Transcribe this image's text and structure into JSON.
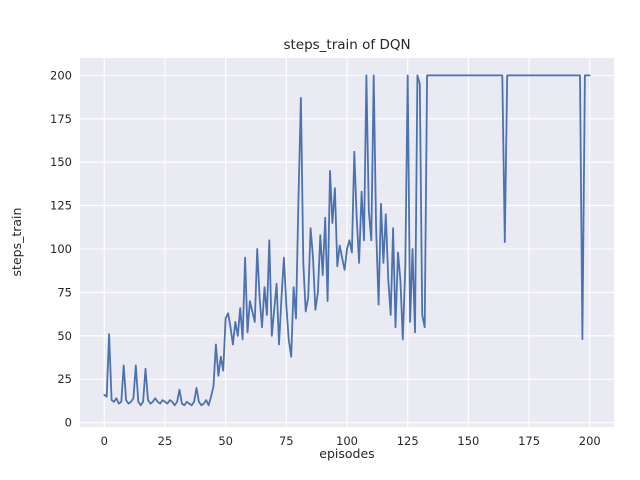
{
  "chart_data": {
    "type": "line",
    "title": "steps_train of DQN",
    "xlabel": "episodes",
    "ylabel": "steps_train",
    "xlim": [
      -10,
      210
    ],
    "ylim": [
      -2.5,
      210
    ],
    "xticks": [
      0,
      25,
      50,
      75,
      100,
      125,
      150,
      175,
      200
    ],
    "yticks": [
      0,
      25,
      50,
      75,
      100,
      125,
      150,
      175,
      200
    ],
    "grid": true,
    "legend": "none",
    "plot_bg": "#eaeaf2",
    "grid_color": "#ffffff",
    "line_color": "#4c72b0",
    "series": [
      {
        "name": "steps_train",
        "x_is_index": true,
        "y": [
          16,
          15,
          51,
          13,
          12,
          14,
          11,
          12,
          33,
          13,
          11,
          12,
          14,
          33,
          12,
          10,
          12,
          31,
          13,
          11,
          12,
          14,
          12,
          11,
          13,
          12,
          11,
          13,
          12,
          10,
          12,
          19,
          11,
          10,
          12,
          11,
          10,
          12,
          20,
          12,
          10,
          11,
          13,
          10,
          15,
          21,
          45,
          27,
          38,
          30,
          60,
          63,
          55,
          45,
          58,
          50,
          66,
          48,
          95,
          52,
          70,
          64,
          58,
          100,
          72,
          55,
          78,
          62,
          105,
          50,
          65,
          80,
          45,
          72,
          95,
          68,
          48,
          38,
          78,
          60,
          130,
          187,
          92,
          64,
          72,
          112,
          95,
          65,
          75,
          108,
          85,
          118,
          70,
          145,
          115,
          135,
          90,
          102,
          95,
          88,
          100,
          105,
          98,
          156,
          118,
          92,
          133,
          105,
          200,
          122,
          105,
          200,
          112,
          68,
          126,
          92,
          120,
          82,
          62,
          112,
          55,
          98,
          82,
          48,
          90,
          200,
          58,
          100,
          52,
          200,
          195,
          62,
          55,
          200,
          200,
          200,
          200,
          200,
          200,
          200,
          200,
          200,
          200,
          200,
          200,
          200,
          200,
          200,
          200,
          200,
          200,
          200,
          200,
          200,
          200,
          200,
          200,
          200,
          200,
          200,
          200,
          200,
          200,
          200,
          200,
          104,
          200,
          200,
          200,
          200,
          200,
          200,
          200,
          200,
          200,
          200,
          200,
          200,
          200,
          200,
          200,
          200,
          200,
          200,
          200,
          200,
          200,
          200,
          200,
          200,
          200,
          200,
          200,
          200,
          200,
          200,
          200,
          48,
          200,
          200,
          200
        ]
      }
    ]
  }
}
